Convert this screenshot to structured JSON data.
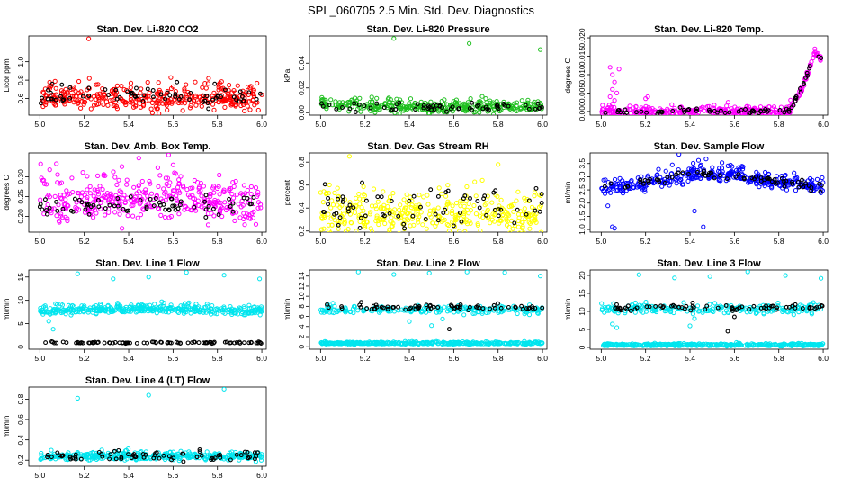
{
  "page_title": "SPL_060705  2.5 Min. Std. Dev. Diagnostics",
  "colors": {
    "red": "#ff0000",
    "green": "#1fbf1f",
    "magenta": "#ff00ff",
    "yellow": "#ffff00",
    "blue": "#0000ff",
    "cyan": "#00e5ee",
    "black": "#000000"
  },
  "chart_data": [
    {
      "type": "scatter",
      "title": "Stan. Dev. Li-820 CO2",
      "ylabel": "Licor ppm",
      "xlim": [
        4.95,
        6.02
      ],
      "ylim": [
        0.42,
        1.28
      ],
      "xticks": [
        "5.0",
        "5.2",
        "5.4",
        "5.6",
        "5.8",
        "6.0"
      ],
      "yticks": [
        "0.6",
        "0.8",
        "1.0"
      ],
      "series": [
        {
          "name": "primary",
          "color": "#ff0000",
          "n": 360,
          "trend": [
            [
              5.0,
              0.6
            ],
            [
              6.0,
              0.6
            ]
          ],
          "spread": 0.07,
          "outliers": [
            [
              5.22,
              1.25
            ],
            [
              5.76,
              0.82
            ],
            [
              5.7,
              0.78
            ],
            [
              5.6,
              0.73
            ]
          ]
        },
        {
          "name": "secondary",
          "color": "#000000",
          "n": 70,
          "trend": [
            [
              5.0,
              0.62
            ],
            [
              6.0,
              0.62
            ]
          ],
          "spread": 0.05,
          "outliers": []
        }
      ]
    },
    {
      "type": "scatter",
      "title": "Stan. Dev. Li-820 Pressure",
      "ylabel": "kPa",
      "xlim": [
        4.95,
        6.02
      ],
      "ylim": [
        -0.002,
        0.062
      ],
      "xticks": [
        "5.0",
        "5.2",
        "5.4",
        "5.6",
        "5.8",
        "6.0"
      ],
      "yticks": [
        "0.00",
        "0.02",
        "0.04"
      ],
      "series": [
        {
          "name": "primary",
          "color": "#1fbf1f",
          "n": 360,
          "trend": [
            [
              5.0,
              0.007
            ],
            [
              5.5,
              0.004
            ],
            [
              6.0,
              0.005
            ]
          ],
          "spread": 0.0022,
          "outliers": [
            [
              5.33,
              0.06
            ],
            [
              5.67,
              0.056
            ],
            [
              5.99,
              0.051
            ]
          ]
        },
        {
          "name": "secondary",
          "color": "#000000",
          "n": 60,
          "trend": [
            [
              5.0,
              0.005
            ],
            [
              6.0,
              0.004
            ]
          ],
          "spread": 0.002,
          "outliers": []
        }
      ]
    },
    {
      "type": "scatter",
      "title": "Stan. Dev. Li-820 Temp.",
      "ylabel": "degrees C",
      "xlim": [
        4.95,
        6.02
      ],
      "ylim": [
        -0.001,
        0.0205
      ],
      "xticks": [
        "5.0",
        "5.2",
        "5.4",
        "5.6",
        "5.8",
        "6.0"
      ],
      "yticks": [
        "0.000",
        "0.005",
        "0.010",
        "0.015",
        "0.020"
      ],
      "series": [
        {
          "name": "primary",
          "color": "#ff00ff",
          "n": 360,
          "trend": [
            [
              5.0,
              0.0
            ],
            [
              5.84,
              0.0
            ],
            [
              5.88,
              0.003
            ],
            [
              5.94,
              0.012
            ],
            [
              5.96,
              0.016
            ],
            [
              6.0,
              0.014
            ]
          ],
          "spread": 0.0006,
          "outliers": [
            [
              5.04,
              0.012
            ],
            [
              5.05,
              0.01
            ],
            [
              5.06,
              0.008
            ],
            [
              5.05,
              0.006
            ],
            [
              5.07,
              0.005
            ],
            [
              5.04,
              0.004
            ],
            [
              5.06,
              0.003
            ],
            [
              5.05,
              0.002
            ],
            [
              5.08,
              0.0115
            ],
            [
              5.21,
              0.004
            ],
            [
              5.2,
              0.0035
            ]
          ]
        },
        {
          "name": "secondary",
          "color": "#000000",
          "n": 70,
          "trend": [
            [
              5.0,
              0.0
            ],
            [
              5.85,
              0.0
            ],
            [
              5.9,
              0.006
            ],
            [
              5.95,
              0.014
            ],
            [
              6.0,
              0.015
            ]
          ],
          "spread": 0.0004,
          "outliers": []
        }
      ]
    },
    {
      "type": "scatter",
      "title": "Stan. Dev. Amb. Box Temp.",
      "ylabel": "degrees C",
      "xlim": [
        4.95,
        6.02
      ],
      "ylim": [
        0.16,
        0.36
      ],
      "xticks": [
        "5.0",
        "5.2",
        "5.4",
        "5.6",
        "5.8",
        "6.0"
      ],
      "yticks": [
        "0.20",
        "0.25",
        "0.30"
      ],
      "series": [
        {
          "name": "primary",
          "color": "#ff00ff",
          "n": 380,
          "trend": [
            [
              5.0,
              0.235
            ],
            [
              5.5,
              0.245
            ],
            [
              6.0,
              0.235
            ]
          ],
          "spread": 0.03,
          "outliers": [
            [
              5.58,
              0.355
            ],
            [
              5.6,
              0.33
            ]
          ]
        },
        {
          "name": "secondary",
          "color": "#000000",
          "n": 70,
          "trend": [
            [
              5.0,
              0.225
            ],
            [
              6.0,
              0.225
            ]
          ],
          "spread": 0.013,
          "outliers": []
        }
      ]
    },
    {
      "type": "scatter",
      "title": "Stan. Dev. Gas Stream RH",
      "ylabel": "percent",
      "xlim": [
        4.95,
        6.02
      ],
      "ylim": [
        0.19,
        0.88
      ],
      "xticks": [
        "5.0",
        "5.2",
        "5.4",
        "5.6",
        "5.8",
        "6.0"
      ],
      "yticks": [
        "0.2",
        "0.4",
        "0.6",
        "0.8"
      ],
      "series": [
        {
          "name": "primary",
          "color": "#ffff00",
          "n": 380,
          "trend": [
            [
              5.0,
              0.35
            ],
            [
              6.0,
              0.35
            ]
          ],
          "spread": 0.09,
          "outliers": [
            [
              5.13,
              0.85
            ],
            [
              5.8,
              0.78
            ],
            [
              5.58,
              0.2
            ]
          ]
        },
        {
          "name": "secondary",
          "color": "#000000",
          "n": 70,
          "trend": [
            [
              5.0,
              0.38
            ],
            [
              6.0,
              0.4
            ]
          ],
          "spread": 0.1,
          "outliers": []
        }
      ]
    },
    {
      "type": "scatter",
      "title": "Stan. Dev. Sample Flow",
      "ylabel": "ml/min",
      "xlim": [
        4.95,
        6.02
      ],
      "ylim": [
        0.9,
        3.9
      ],
      "xticks": [
        "5.0",
        "5.2",
        "5.4",
        "5.6",
        "5.8",
        "6.0"
      ],
      "yticks": [
        "1.0",
        "1.5",
        "2.0",
        "2.5",
        "3.0",
        "3.5"
      ],
      "series": [
        {
          "name": "primary",
          "color": "#0000ff",
          "n": 380,
          "trend": [
            [
              5.0,
              2.55
            ],
            [
              5.2,
              2.75
            ],
            [
              5.4,
              3.1
            ],
            [
              5.6,
              3.05
            ],
            [
              5.8,
              2.8
            ],
            [
              6.0,
              2.6
            ]
          ],
          "spread": 0.15,
          "outliers": [
            [
              5.05,
              1.1
            ],
            [
              5.06,
              1.05
            ],
            [
              5.03,
              1.9
            ],
            [
              5.35,
              3.85
            ],
            [
              5.46,
              1.1
            ],
            [
              5.42,
              1.7
            ]
          ]
        },
        {
          "name": "secondary",
          "color": "#000000",
          "n": 70,
          "trend": [
            [
              5.0,
              2.55
            ],
            [
              5.2,
              2.75
            ],
            [
              5.4,
              3.15
            ],
            [
              5.6,
              3.05
            ],
            [
              5.8,
              2.8
            ],
            [
              6.0,
              2.6
            ]
          ],
          "spread": 0.09,
          "outliers": []
        }
      ]
    },
    {
      "type": "scatter",
      "title": "Stan. Dev. Line 1 Flow",
      "ylabel": "ml/min",
      "xlim": [
        4.95,
        6.02
      ],
      "ylim": [
        -0.5,
        16.5
      ],
      "xticks": [
        "5.0",
        "5.2",
        "5.4",
        "5.6",
        "5.8",
        "6.0"
      ],
      "yticks": [
        "0",
        "5",
        "10",
        "15"
      ],
      "series": [
        {
          "name": "primary",
          "color": "#00e5ee",
          "n": 380,
          "trend": [
            [
              5.0,
              7.8
            ],
            [
              5.5,
              8.3
            ],
            [
              6.0,
              7.6
            ]
          ],
          "spread": 0.5,
          "outliers": [
            [
              5.17,
              15.7
            ],
            [
              5.33,
              14.6
            ],
            [
              5.49,
              15.0
            ],
            [
              5.66,
              16.0
            ],
            [
              5.83,
              15.4
            ],
            [
              5.99,
              14.6
            ],
            [
              5.06,
              3.8
            ],
            [
              5.04,
              5.5
            ]
          ]
        },
        {
          "name": "secondary",
          "color": "#000000",
          "n": 90,
          "trend": [
            [
              5.0,
              0.9
            ],
            [
              6.0,
              0.9
            ]
          ],
          "spread": 0.08,
          "outliers": []
        }
      ]
    },
    {
      "type": "scatter",
      "title": "Stan. Dev. Line 2 Flow",
      "ylabel": "ml/min",
      "xlim": [
        4.95,
        6.02
      ],
      "ylim": [
        -0.5,
        15.2
      ],
      "xticks": [
        "5.0",
        "5.2",
        "5.4",
        "5.6",
        "5.8",
        "6.0"
      ],
      "yticks": [
        "0",
        "2",
        "4",
        "6",
        "8",
        "10",
        "12",
        "14"
      ],
      "series": [
        {
          "name": "primary",
          "color": "#00e5ee",
          "n": 380,
          "trend": [
            [
              5.0,
              0.7
            ],
            [
              6.0,
              0.7
            ]
          ],
          "spread": 0.12,
          "outliers": []
        },
        {
          "name": "tertiary",
          "color": "#00e5ee",
          "n": 220,
          "trend": [
            [
              5.0,
              7.3
            ],
            [
              6.0,
              7.3
            ]
          ],
          "spread": 0.35,
          "outliers": [
            [
              5.17,
              14.8
            ],
            [
              5.33,
              14.3
            ],
            [
              5.49,
              14.6
            ],
            [
              5.66,
              14.8
            ],
            [
              5.83,
              14.7
            ],
            [
              5.99,
              14.0
            ],
            [
              5.4,
              5.0
            ],
            [
              5.5,
              4.2
            ],
            [
              5.55,
              5.5
            ]
          ]
        },
        {
          "name": "secondary",
          "color": "#000000",
          "n": 70,
          "trend": [
            [
              5.0,
              7.8
            ],
            [
              6.0,
              7.8
            ]
          ],
          "spread": 0.25,
          "outliers": [
            [
              5.58,
              3.5
            ]
          ]
        }
      ]
    },
    {
      "type": "scatter",
      "title": "Stan. Dev. Line 3 Flow",
      "ylabel": "ml/min",
      "xlim": [
        4.95,
        6.02
      ],
      "ylim": [
        -0.5,
        21.5
      ],
      "xticks": [
        "5.0",
        "5.2",
        "5.4",
        "5.6",
        "5.8",
        "6.0"
      ],
      "yticks": [
        "0",
        "5",
        "10",
        "15",
        "20"
      ],
      "series": [
        {
          "name": "primary",
          "color": "#00e5ee",
          "n": 380,
          "trend": [
            [
              5.0,
              0.7
            ],
            [
              6.0,
              0.7
            ]
          ],
          "spread": 0.15,
          "outliers": []
        },
        {
          "name": "tertiary",
          "color": "#00e5ee",
          "n": 220,
          "trend": [
            [
              5.0,
              10.6
            ],
            [
              6.0,
              10.6
            ]
          ],
          "spread": 0.6,
          "outliers": [
            [
              5.17,
              20.2
            ],
            [
              5.33,
              19.3
            ],
            [
              5.49,
              19.7
            ],
            [
              5.66,
              21.0
            ],
            [
              5.83,
              20.0
            ],
            [
              5.99,
              19.2
            ],
            [
              5.05,
              6.5
            ],
            [
              5.07,
              5.5
            ],
            [
              5.4,
              6.0
            ],
            [
              5.42,
              8.0
            ]
          ]
        },
        {
          "name": "secondary",
          "color": "#000000",
          "n": 70,
          "trend": [
            [
              5.0,
              11.0
            ],
            [
              6.0,
              11.0
            ]
          ],
          "spread": 0.4,
          "outliers": [
            [
              5.57,
              4.5
            ],
            [
              5.6,
              8.5
            ]
          ]
        }
      ]
    },
    {
      "type": "scatter",
      "title": "Stan. Dev. Line 4 (LT) Flow",
      "ylabel": "ml/min",
      "xlim": [
        4.95,
        6.02
      ],
      "ylim": [
        0.14,
        0.92
      ],
      "xticks": [
        "5.0",
        "5.2",
        "5.4",
        "5.6",
        "5.8",
        "6.0"
      ],
      "yticks": [
        "0.2",
        "0.4",
        "0.6",
        "0.8"
      ],
      "series": [
        {
          "name": "primary",
          "color": "#00e5ee",
          "n": 380,
          "trend": [
            [
              5.0,
              0.24
            ],
            [
              6.0,
              0.24
            ]
          ],
          "spread": 0.02,
          "outliers": [
            [
              5.17,
              0.81
            ],
            [
              5.49,
              0.84
            ],
            [
              5.83,
              0.9
            ]
          ]
        },
        {
          "name": "secondary",
          "color": "#000000",
          "n": 70,
          "trend": [
            [
              5.0,
              0.24
            ],
            [
              6.0,
              0.24
            ]
          ],
          "spread": 0.025,
          "outliers": []
        }
      ]
    }
  ]
}
